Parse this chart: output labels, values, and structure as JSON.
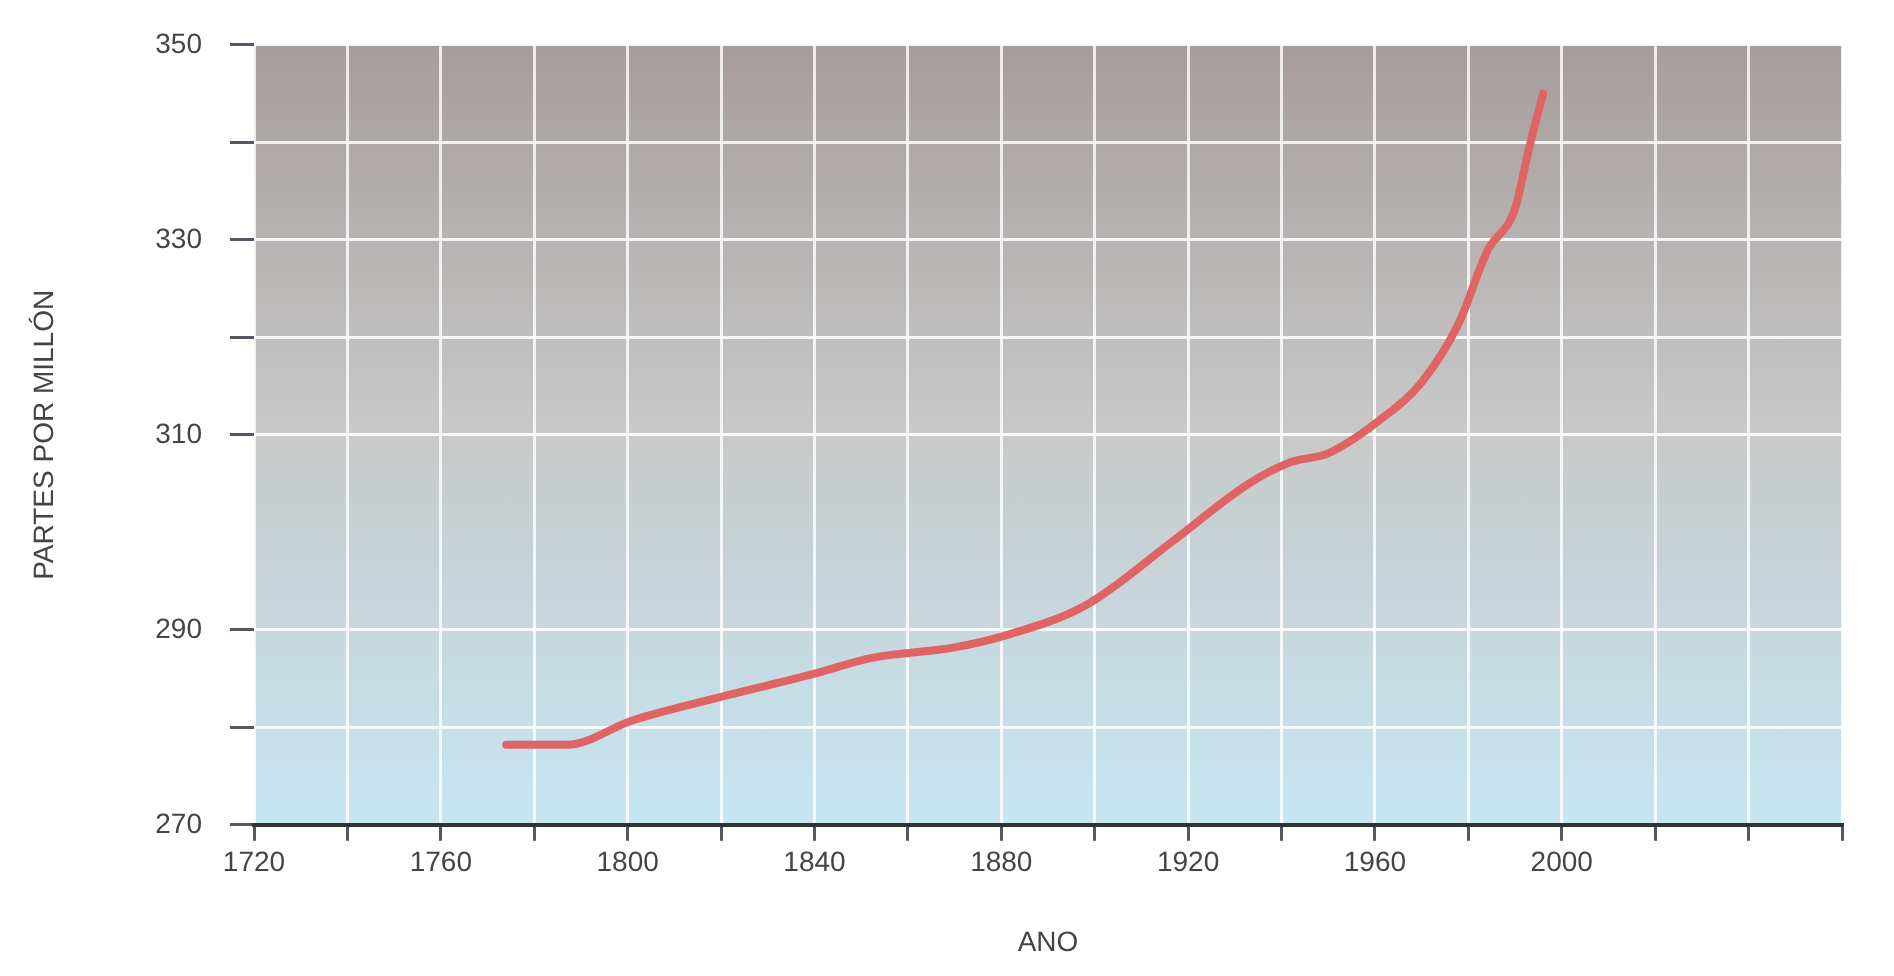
{
  "chart_data": {
    "type": "line",
    "xlabel": "ANO",
    "ylabel": "PARTES POR MILLÓN",
    "x": [
      1774,
      1787,
      1801,
      1819,
      1840,
      1852,
      1870,
      1880,
      1898,
      1917,
      1933,
      1942,
      1950,
      1961,
      1970,
      1978,
      1984,
      1990,
      1993,
      1996
    ],
    "series": [
      {
        "color": "#e06464",
        "values": [
          278.2,
          278.2,
          280.7,
          283,
          285.5,
          287.1,
          288.2,
          289.3,
          292.5,
          299.2,
          305,
          307.2,
          308.1,
          311.5,
          315.4,
          321.5,
          328.8,
          333.2,
          339.4,
          345
        ]
      }
    ],
    "xlim": [
      1720,
      2060
    ],
    "xticks": [
      1720,
      {
        "value": 1740,
        "label": null
      },
      1760,
      {
        "value": 1780,
        "label": null
      },
      1800,
      {
        "value": 1820,
        "label": null
      },
      1840,
      {
        "value": 1860,
        "label": null
      },
      1880,
      {
        "value": 1900,
        "label": null
      },
      1920,
      {
        "value": 1940,
        "label": null
      },
      1960,
      {
        "value": 1980,
        "label": null
      },
      2000,
      {
        "value": 2020,
        "label": null
      },
      {
        "value": 2040,
        "label": null
      },
      {
        "value": 2060,
        "label": null
      }
    ],
    "ylim": [
      270,
      350
    ],
    "yticks": [
      270,
      {
        "value": 280,
        "label": null
      },
      290,
      310,
      {
        "value": 320,
        "label": null
      },
      330,
      {
        "value": 340,
        "label": null
      },
      350
    ],
    "grid": true,
    "legend": false,
    "marker": "none",
    "line_style": "solid"
  }
}
